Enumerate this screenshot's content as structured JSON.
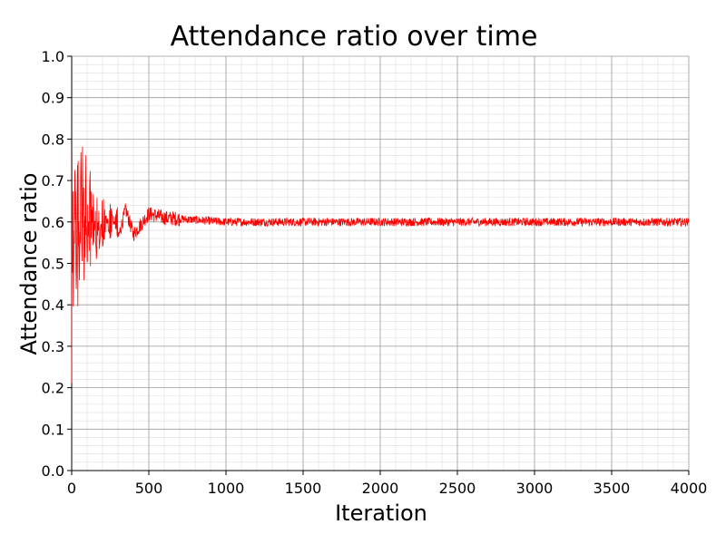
{
  "chart_data": {
    "type": "line",
    "title": "Attendance ratio over time",
    "xlabel": "Iteration",
    "ylabel": "Attendance ratio",
    "xlim": [
      0,
      4000
    ],
    "ylim": [
      0,
      1.0
    ],
    "x_ticks": [
      "0",
      "500",
      "1000",
      "1500",
      "2000",
      "2500",
      "3000",
      "3500",
      "4000"
    ],
    "y_ticks": [
      "0.0",
      "0.1",
      "0.2",
      "0.3",
      "0.4",
      "0.5",
      "0.6",
      "0.7",
      "0.8",
      "0.9",
      "1.0"
    ],
    "grid": true,
    "legend": "none",
    "series": [
      {
        "color": "#ff0000",
        "x": [
          0,
          5,
          10,
          20,
          30,
          40,
          50,
          60,
          70,
          80,
          90,
          100,
          120,
          140,
          160,
          180,
          200,
          250,
          300,
          350,
          400,
          500,
          600,
          800,
          1000,
          1500,
          2000,
          2500,
          3000,
          3500,
          4000
        ],
        "y": [
          0.2,
          0.78,
          0.38,
          0.75,
          0.42,
          0.8,
          0.45,
          0.78,
          0.42,
          0.74,
          0.45,
          0.7,
          0.48,
          0.67,
          0.52,
          0.66,
          0.54,
          0.64,
          0.56,
          0.63,
          0.57,
          0.62,
          0.61,
          0.605,
          0.6,
          0.6,
          0.6,
          0.6,
          0.6,
          0.6,
          0.6
        ]
      }
    ]
  }
}
